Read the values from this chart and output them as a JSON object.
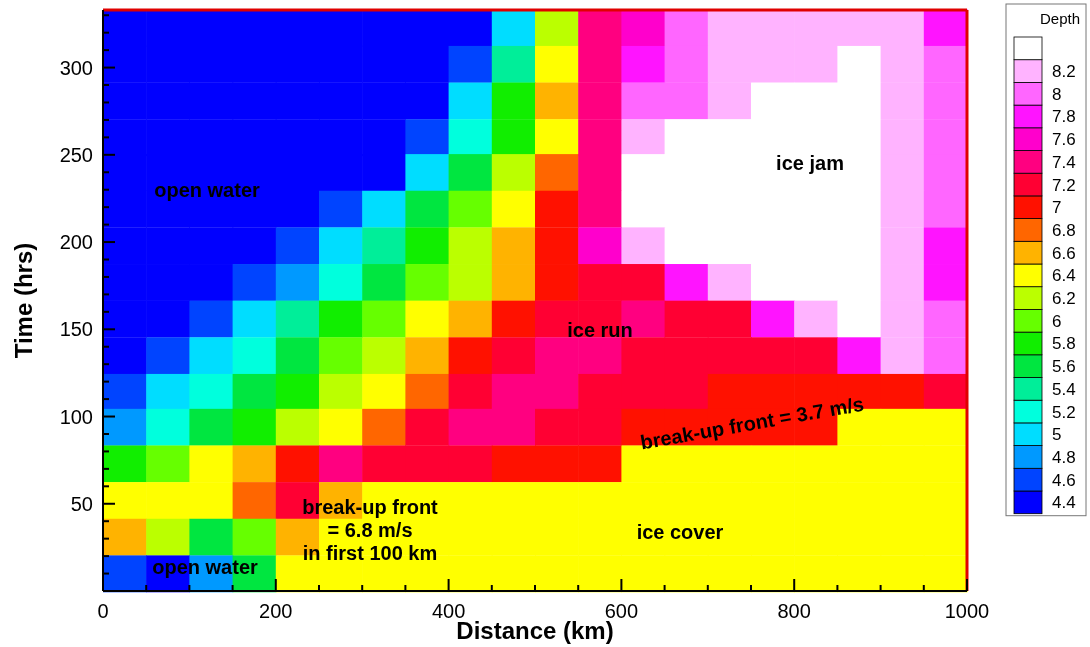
{
  "chart_data": {
    "type": "heatmap",
    "xlabel": "Distance (km)",
    "ylabel": "Time (hrs)",
    "clabel": "Depth",
    "xlim": [
      0,
      1000
    ],
    "ylim": [
      0,
      333
    ],
    "xticks": [
      0,
      {
        "value": 50,
        "label": null
      },
      {
        "value": 100,
        "label": null
      },
      {
        "value": 150,
        "label": null
      },
      200,
      {
        "value": 250,
        "label": null
      },
      {
        "value": 300,
        "label": null
      },
      {
        "value": 350,
        "label": null
      },
      400,
      {
        "value": 450,
        "label": null
      },
      {
        "value": 500,
        "label": null
      },
      {
        "value": 550,
        "label": null
      },
      600,
      {
        "value": 650,
        "label": null
      },
      {
        "value": 700,
        "label": null
      },
      {
        "value": 750,
        "label": null
      },
      800,
      {
        "value": 850,
        "label": null
      },
      {
        "value": 900,
        "label": null
      },
      {
        "value": 950,
        "label": null
      },
      1000
    ],
    "yticks": [
      {
        "value": 10,
        "label": null
      },
      {
        "value": 20,
        "label": null
      },
      {
        "value": 30,
        "label": null
      },
      {
        "value": 40,
        "label": null
      },
      50,
      {
        "value": 60,
        "label": null
      },
      {
        "value": 70,
        "label": null
      },
      {
        "value": 80,
        "label": null
      },
      {
        "value": 90,
        "label": null
      },
      100,
      {
        "value": 110,
        "label": null
      },
      {
        "value": 120,
        "label": null
      },
      {
        "value": 130,
        "label": null
      },
      {
        "value": 140,
        "label": null
      },
      150,
      {
        "value": 160,
        "label": null
      },
      {
        "value": 170,
        "label": null
      },
      {
        "value": 180,
        "label": null
      },
      {
        "value": 190,
        "label": null
      },
      200,
      {
        "value": 210,
        "label": null
      },
      {
        "value": 220,
        "label": null
      },
      {
        "value": 230,
        "label": null
      },
      {
        "value": 240,
        "label": null
      },
      250,
      {
        "value": 260,
        "label": null
      },
      {
        "value": 270,
        "label": null
      },
      {
        "value": 280,
        "label": null
      },
      {
        "value": 290,
        "label": null
      },
      300,
      {
        "value": 310,
        "label": null
      },
      {
        "value": 320,
        "label": null
      },
      {
        "value": 330,
        "label": null
      }
    ],
    "x": [
      25,
      75,
      125,
      175,
      225,
      275,
      325,
      375,
      425,
      475,
      525,
      575,
      625,
      675,
      725,
      775,
      825,
      875,
      925,
      975
    ],
    "y": [
      323,
      302,
      281,
      260,
      240,
      219,
      198,
      177,
      156,
      135,
      114,
      94,
      73,
      52,
      31,
      10
    ],
    "clim": [
      4.3,
      8.5
    ],
    "cticks": [
      4.4,
      4.6,
      4.8,
      5,
      5.2,
      5.4,
      5.6,
      5.8,
      6,
      6.2,
      6.4,
      6.6,
      6.8,
      7,
      7.2,
      7.4,
      7.6,
      7.8,
      8,
      8.2
    ],
    "colors": [
      "#0000ff",
      "#0044ff",
      "#0099ff",
      "#00ddff",
      "#00ffdd",
      "#00ee99",
      "#00e640",
      "#11ee00",
      "#66ff00",
      "#bbff00",
      "#ffff00",
      "#ffb300",
      "#ff6600",
      "#ff1100",
      "#ff0033",
      "#ff0080",
      "#ff00cc",
      "#ff14ff",
      "#ff66ff",
      "#ffb3ff",
      "#ffffff"
    ],
    "cells": [
      [
        4.4,
        4.4,
        4.4,
        4.4,
        4.4,
        4.4,
        4.4,
        4.4,
        4.4,
        5.0,
        6.2,
        7.4,
        7.6,
        8.0,
        8.2,
        8.2,
        8.2,
        8.2,
        8.2,
        7.8
      ],
      [
        4.4,
        4.4,
        4.4,
        4.4,
        4.4,
        4.4,
        4.4,
        4.4,
        4.6,
        5.4,
        6.4,
        7.4,
        7.8,
        8.0,
        8.2,
        8.2,
        8.2,
        8.4,
        8.2,
        8.0
      ],
      [
        4.4,
        4.4,
        4.4,
        4.4,
        4.4,
        4.4,
        4.4,
        4.4,
        5.0,
        5.8,
        6.6,
        7.4,
        8.0,
        8.0,
        8.2,
        8.4,
        8.4,
        8.4,
        8.2,
        8.0
      ],
      [
        4.4,
        4.4,
        4.4,
        4.4,
        4.4,
        4.4,
        4.4,
        4.6,
        5.2,
        5.8,
        6.4,
        7.4,
        8.2,
        8.4,
        8.4,
        8.4,
        8.4,
        8.4,
        8.2,
        8.0
      ],
      [
        4.4,
        4.4,
        4.4,
        4.4,
        4.4,
        4.4,
        4.4,
        5.0,
        5.6,
        6.2,
        6.8,
        7.4,
        8.4,
        8.4,
        8.4,
        8.4,
        8.4,
        8.4,
        8.2,
        8.0
      ],
      [
        4.4,
        4.4,
        4.4,
        4.4,
        4.4,
        4.6,
        5.0,
        5.6,
        6.0,
        6.4,
        7.0,
        7.4,
        8.4,
        8.4,
        8.4,
        8.4,
        8.4,
        8.4,
        8.2,
        8.0
      ],
      [
        4.4,
        4.4,
        4.4,
        4.4,
        4.6,
        5.0,
        5.4,
        5.8,
        6.2,
        6.6,
        7.0,
        7.6,
        8.2,
        8.4,
        8.4,
        8.4,
        8.4,
        8.4,
        8.2,
        7.8
      ],
      [
        4.4,
        4.4,
        4.4,
        4.6,
        4.8,
        5.2,
        5.6,
        6.0,
        6.2,
        6.6,
        7.0,
        7.2,
        7.2,
        7.8,
        8.2,
        8.4,
        8.4,
        8.4,
        8.2,
        7.8
      ],
      [
        4.4,
        4.4,
        4.6,
        5.0,
        5.4,
        5.8,
        6.0,
        6.4,
        6.6,
        7.0,
        7.2,
        7.2,
        7.4,
        7.2,
        7.2,
        7.8,
        8.2,
        8.4,
        8.2,
        8.0
      ],
      [
        4.4,
        4.6,
        5.0,
        5.2,
        5.6,
        6.0,
        6.2,
        6.6,
        7.0,
        7.2,
        7.4,
        7.4,
        7.2,
        7.2,
        7.2,
        7.2,
        7.2,
        7.8,
        8.2,
        8.0
      ],
      [
        4.6,
        5.0,
        5.2,
        5.6,
        5.8,
        6.2,
        6.4,
        6.8,
        7.2,
        7.4,
        7.4,
        7.2,
        7.2,
        7.2,
        7.0,
        7.0,
        7.0,
        7.0,
        7.0,
        7.2
      ],
      [
        4.8,
        5.2,
        5.6,
        5.8,
        6.2,
        6.4,
        6.8,
        7.2,
        7.4,
        7.4,
        7.2,
        7.2,
        7.0,
        7.0,
        7.0,
        7.0,
        7.0,
        6.4,
        6.4,
        6.4
      ],
      [
        5.8,
        6.0,
        6.4,
        6.6,
        7.0,
        7.4,
        7.2,
        7.2,
        7.2,
        7.0,
        7.0,
        7.0,
        6.4,
        6.4,
        6.4,
        6.4,
        6.4,
        6.4,
        6.4,
        6.4
      ],
      [
        6.4,
        6.4,
        6.4,
        6.8,
        7.2,
        6.6,
        6.4,
        6.4,
        6.4,
        6.4,
        6.4,
        6.4,
        6.4,
        6.4,
        6.4,
        6.4,
        6.4,
        6.4,
        6.4,
        6.4
      ],
      [
        6.6,
        6.2,
        5.6,
        6.0,
        6.6,
        6.4,
        6.4,
        6.4,
        6.4,
        6.4,
        6.4,
        6.4,
        6.4,
        6.4,
        6.4,
        6.4,
        6.4,
        6.4,
        6.4,
        6.4
      ],
      [
        4.6,
        4.4,
        4.8,
        5.6,
        6.4,
        6.4,
        6.4,
        6.4,
        6.4,
        6.4,
        6.4,
        6.4,
        6.4,
        6.4,
        6.4,
        6.4,
        6.4,
        6.4,
        6.4,
        6.4
      ]
    ],
    "annotations": [
      "open water",
      "ice jam",
      "ice run",
      "break-up front = 3.7 m/s",
      "break-up front\n= 6.8 m/s\nin first 100 km",
      "ice cover",
      "open water"
    ]
  }
}
